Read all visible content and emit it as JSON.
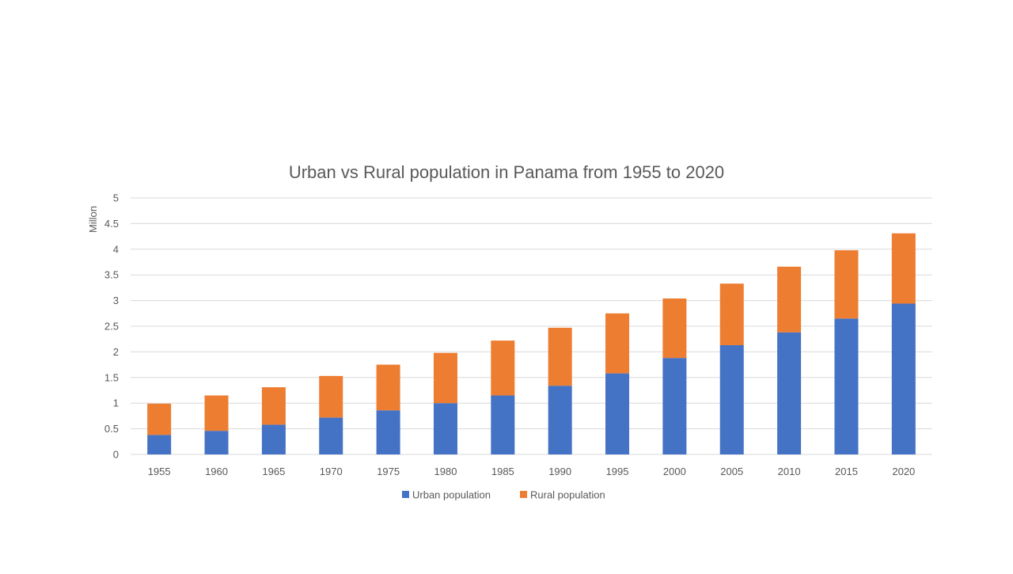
{
  "chart_data": {
    "type": "bar",
    "stacked": true,
    "title": "Urban vs Rural population in Panama from 1955 to 2020",
    "xlabel": "",
    "ylabel": "Millon",
    "ylim": [
      0,
      5
    ],
    "yticks": [
      "0",
      "0.5",
      "1",
      "1.5",
      "2",
      "2.5",
      "3",
      "3.5",
      "4",
      "4.5",
      "5"
    ],
    "grid": true,
    "legend_position": "bottom",
    "categories": [
      "1955",
      "1960",
      "1965",
      "1970",
      "1975",
      "1980",
      "1985",
      "1990",
      "1995",
      "2000",
      "2005",
      "2010",
      "2015",
      "2020"
    ],
    "series": [
      {
        "name": "Urban population",
        "color": "#4472C4",
        "values": [
          0.38,
          0.46,
          0.58,
          0.72,
          0.86,
          1.0,
          1.15,
          1.34,
          1.58,
          1.88,
          2.13,
          2.38,
          2.65,
          2.94
        ]
      },
      {
        "name": "Rural population",
        "color": "#ED7D31",
        "values": [
          0.61,
          0.69,
          0.73,
          0.81,
          0.89,
          0.98,
          1.07,
          1.13,
          1.17,
          1.16,
          1.2,
          1.28,
          1.33,
          1.37
        ]
      }
    ]
  }
}
